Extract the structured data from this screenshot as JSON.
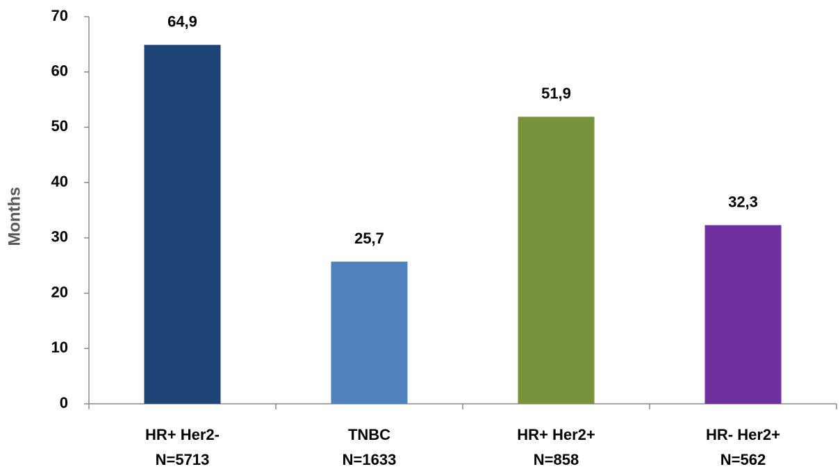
{
  "chart_data": {
    "type": "bar",
    "y_label": "Months",
    "categories": [
      [
        "HR+ Her2-",
        "N=5713"
      ],
      [
        "TNBC",
        "N=1633"
      ],
      [
        "HR+ Her2+",
        "N=858"
      ],
      [
        "HR- Her2+",
        "N=562"
      ]
    ],
    "values": [
      64.9,
      25.7,
      51.9,
      32.3
    ],
    "value_labels": [
      "64,9",
      "25,7",
      "51,9",
      "32,3"
    ],
    "colors": [
      "#1f4576",
      "#4f81bd",
      "#77933c",
      "#7030a0"
    ],
    "ylim": [
      0,
      70
    ],
    "yticks": [
      0,
      10,
      20,
      30,
      40,
      50,
      60,
      70
    ],
    "grid": false
  }
}
